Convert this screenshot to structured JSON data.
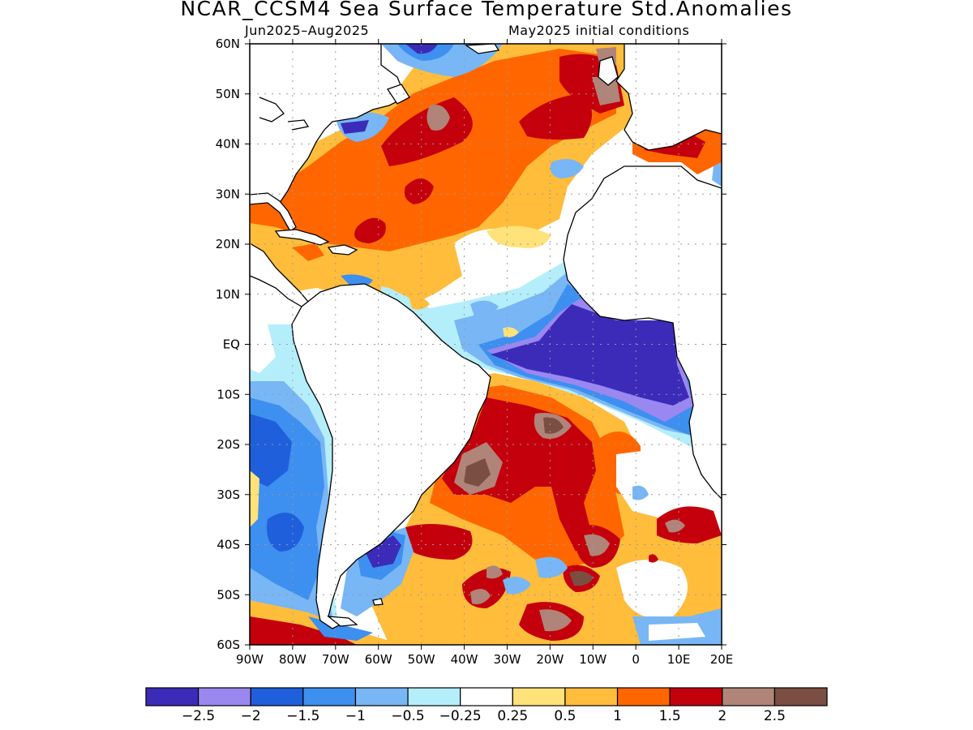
{
  "header": {
    "title": "NCAR_CCSM4 Sea Surface Temperature Std.Anomalies",
    "period": "Jun2025–Aug2025",
    "init": "May2025 initial conditions"
  },
  "axes": {
    "lat_labels": [
      "60N",
      "50N",
      "40N",
      "30N",
      "20N",
      "10N",
      "EQ",
      "10S",
      "20S",
      "30S",
      "40S",
      "50S",
      "60S"
    ],
    "lon_labels": [
      "90W",
      "80W",
      "70W",
      "60W",
      "50W",
      "40W",
      "30W",
      "20W",
      "10W",
      "0",
      "10E",
      "20E"
    ]
  },
  "colorbar": {
    "colors": [
      "#3b2bb8",
      "#9b87f0",
      "#1f5fdc",
      "#3d8ff0",
      "#78b6f5",
      "#b4eefa",
      "#ffffff",
      "#ffe27a",
      "#ffbd3b",
      "#ff6600",
      "#c4000c",
      "#b08478",
      "#7a4e42"
    ],
    "labels": [
      "−2.5",
      "−2",
      "−1.5",
      "−1",
      "−0.5",
      "−0.25",
      "0.25",
      "0.5",
      "1",
      "1.5",
      "2",
      "2.5"
    ]
  },
  "land_color": "#ffffff"
}
